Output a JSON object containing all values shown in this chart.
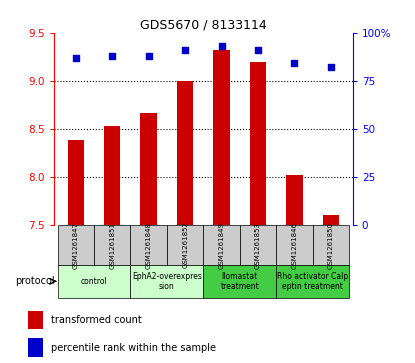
{
  "title": "GDS5670 / 8133114",
  "samples": [
    "GSM1261847",
    "GSM1261851",
    "GSM1261848",
    "GSM1261852",
    "GSM1261849",
    "GSM1261853",
    "GSM1261846",
    "GSM1261850"
  ],
  "transformed_count": [
    8.38,
    8.53,
    8.67,
    9.0,
    9.32,
    9.2,
    8.02,
    7.6
  ],
  "percentile_rank": [
    87,
    88,
    88,
    91,
    93,
    91,
    84,
    82
  ],
  "ylim_left": [
    7.5,
    9.5
  ],
  "ylim_right": [
    0,
    100
  ],
  "yticks_left": [
    7.5,
    8.0,
    8.5,
    9.0,
    9.5
  ],
  "yticks_right": [
    0,
    25,
    50,
    75,
    100
  ],
  "ytick_labels_right": [
    "0",
    "25",
    "50",
    "75",
    "100%"
  ],
  "protocols": [
    {
      "label": "control",
      "samples": [
        0,
        1
      ],
      "color": "#ccffcc"
    },
    {
      "label": "EphA2-overexpres\nsion",
      "samples": [
        2,
        3
      ],
      "color": "#ccffcc"
    },
    {
      "label": "Ilomastat\ntreatment",
      "samples": [
        4,
        5
      ],
      "color": "#44cc44"
    },
    {
      "label": "Rho activator Calp\neptin treatment",
      "samples": [
        6,
        7
      ],
      "color": "#44cc44"
    }
  ],
  "bar_color": "#cc0000",
  "dot_color": "#0000cc",
  "bar_bottom": 7.5,
  "sample_box_color": "#cccccc",
  "grid_color": "#000000",
  "legend_red_label": "transformed count",
  "legend_blue_label": "percentile rank within the sample",
  "protocol_label": "protocol"
}
